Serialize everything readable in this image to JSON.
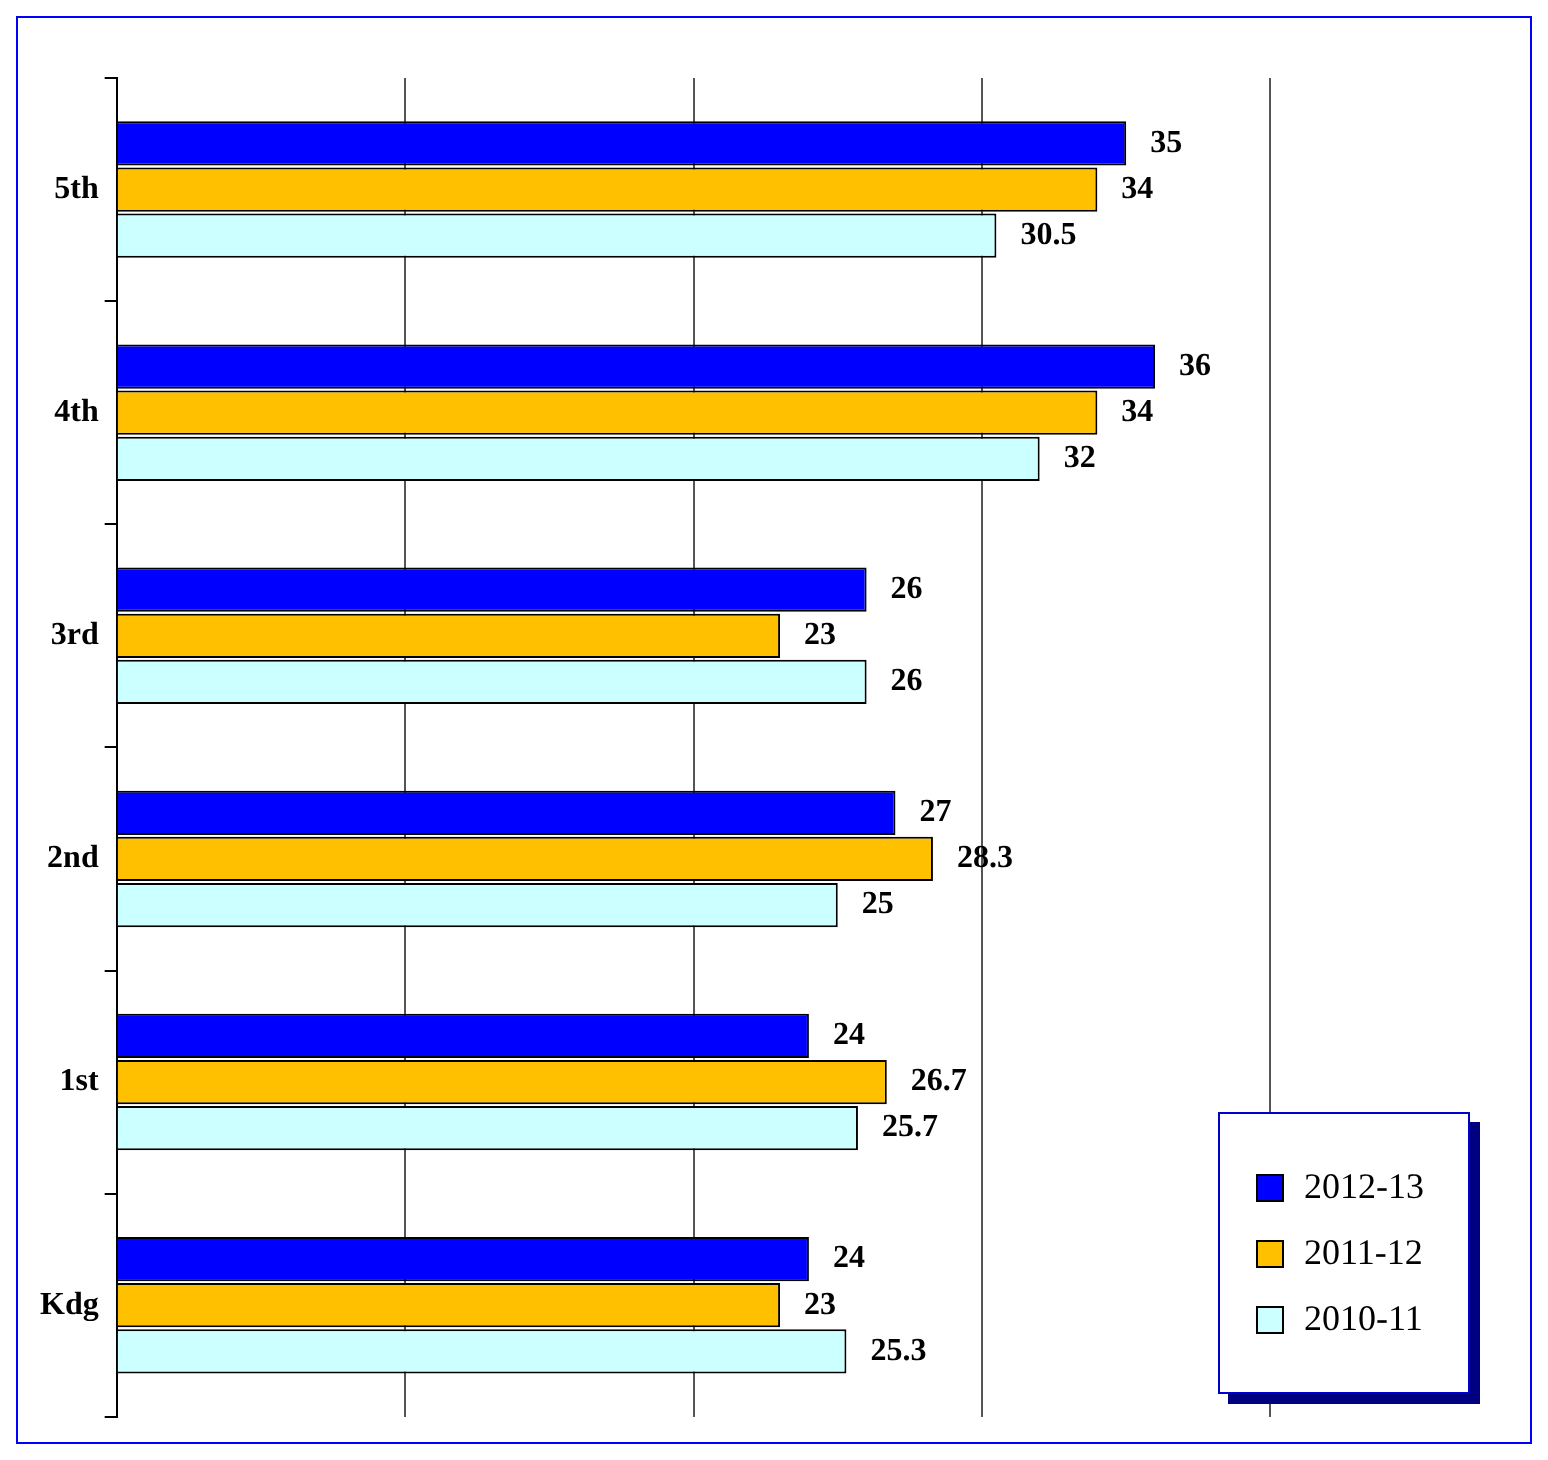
{
  "chart_data": {
    "type": "bar",
    "orientation": "horizontal",
    "categories": [
      "5th",
      "4th",
      "3rd",
      "2nd",
      "1st",
      "Kdg"
    ],
    "series": [
      {
        "name": "2012-13",
        "color": "#0000ff",
        "values": [
          35,
          36,
          26,
          27,
          24,
          24
        ]
      },
      {
        "name": "2011-12",
        "color": "#ffc000",
        "values": [
          34,
          34,
          23,
          28.3,
          26.7,
          23
        ]
      },
      {
        "name": "2010-11",
        "color": "#ccffff",
        "values": [
          30.5,
          32,
          26,
          25,
          25.7,
          25.3
        ]
      }
    ],
    "xlim": [
      0,
      49
    ],
    "xticks": [
      {
        "value": 0,
        "label": null
      },
      {
        "value": 10,
        "label": null
      },
      {
        "value": 20,
        "label": null
      },
      {
        "value": 30,
        "label": null
      },
      {
        "value": 40,
        "label": null
      }
    ],
    "tick_labels": "y",
    "grid": "x",
    "data_labels": true,
    "legend": "bottom right"
  }
}
